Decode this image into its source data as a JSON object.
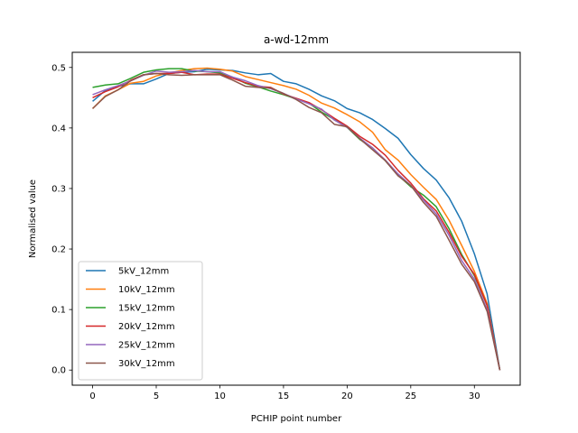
{
  "chart_data": {
    "type": "line",
    "title": "a-wd-12mm",
    "xlabel": "PCHIP point number",
    "ylabel": "Normalised value",
    "xlim": [
      -1.6,
      33.6
    ],
    "ylim": [
      -0.025,
      0.525
    ],
    "xticks": [
      0,
      5,
      10,
      15,
      20,
      25,
      30
    ],
    "yticks": [
      0.0,
      0.1,
      0.2,
      0.3,
      0.4,
      0.5
    ],
    "grid": false,
    "legend_position": "lower-left",
    "x": [
      0,
      1,
      2,
      3,
      4,
      5,
      6,
      7,
      8,
      9,
      10,
      11,
      12,
      13,
      14,
      15,
      16,
      17,
      18,
      19,
      20,
      21,
      22,
      23,
      24,
      25,
      26,
      27,
      28,
      29,
      30,
      31,
      32
    ],
    "series": [
      {
        "name": "5kV_12mm",
        "color": "#1f77b4",
        "values": [
          0.444,
          0.462,
          0.469,
          0.473,
          0.473,
          0.481,
          0.49,
          0.492,
          0.493,
          0.497,
          0.496,
          0.495,
          0.491,
          0.488,
          0.49,
          0.477,
          0.473,
          0.464,
          0.453,
          0.445,
          0.432,
          0.425,
          0.414,
          0.399,
          0.383,
          0.356,
          0.333,
          0.314,
          0.285,
          0.246,
          0.192,
          0.126,
          0.0
        ]
      },
      {
        "name": "10kV_12mm",
        "color": "#ff7f0e",
        "values": [
          0.432,
          0.453,
          0.463,
          0.474,
          0.477,
          0.486,
          0.491,
          0.495,
          0.498,
          0.499,
          0.497,
          0.494,
          0.485,
          0.48,
          0.475,
          0.47,
          0.464,
          0.454,
          0.441,
          0.433,
          0.422,
          0.41,
          0.393,
          0.364,
          0.347,
          0.323,
          0.302,
          0.282,
          0.248,
          0.206,
          0.163,
          0.11,
          0.0
        ]
      },
      {
        "name": "15kV_12mm",
        "color": "#2ca02c",
        "values": [
          0.467,
          0.471,
          0.473,
          0.482,
          0.492,
          0.496,
          0.498,
          0.498,
          0.494,
          0.493,
          0.491,
          0.484,
          0.474,
          0.468,
          0.461,
          0.455,
          0.448,
          0.441,
          0.426,
          0.414,
          0.401,
          0.381,
          0.367,
          0.346,
          0.322,
          0.303,
          0.289,
          0.27,
          0.234,
          0.191,
          0.156,
          0.107,
          0.0
        ]
      },
      {
        "name": "20kV_12mm",
        "color": "#d62728",
        "values": [
          0.45,
          0.46,
          0.468,
          0.479,
          0.488,
          0.49,
          0.49,
          0.492,
          0.488,
          0.489,
          0.489,
          0.482,
          0.475,
          0.469,
          0.467,
          0.456,
          0.449,
          0.442,
          0.43,
          0.416,
          0.403,
          0.386,
          0.373,
          0.355,
          0.33,
          0.309,
          0.283,
          0.263,
          0.228,
          0.188,
          0.158,
          0.107,
          0.0
        ]
      },
      {
        "name": "25kV_12mm",
        "color": "#9467bd",
        "values": [
          0.455,
          0.463,
          0.47,
          0.478,
          0.487,
          0.494,
          0.492,
          0.493,
          0.495,
          0.493,
          0.493,
          0.484,
          0.478,
          0.47,
          0.465,
          0.457,
          0.448,
          0.44,
          0.431,
          0.413,
          0.401,
          0.383,
          0.367,
          0.347,
          0.324,
          0.305,
          0.281,
          0.258,
          0.223,
          0.181,
          0.15,
          0.1,
          0.0
        ]
      },
      {
        "name": "30kV_12mm",
        "color": "#8c564b",
        "values": [
          0.432,
          0.452,
          0.463,
          0.478,
          0.488,
          0.49,
          0.488,
          0.487,
          0.488,
          0.488,
          0.488,
          0.479,
          0.469,
          0.467,
          0.466,
          0.457,
          0.447,
          0.434,
          0.425,
          0.406,
          0.402,
          0.382,
          0.364,
          0.346,
          0.321,
          0.305,
          0.277,
          0.254,
          0.215,
          0.175,
          0.146,
          0.097,
          0.0
        ]
      }
    ]
  }
}
